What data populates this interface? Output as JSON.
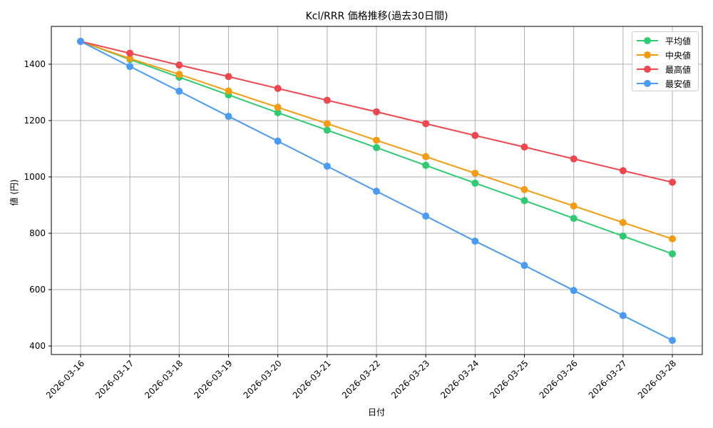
{
  "chart_data": {
    "type": "line",
    "title": "Kcl/RRR 価格推移(過去30日間)",
    "xlabel": "日付",
    "ylabel": "値 (円)",
    "x": [
      "2026-03-16",
      "2026-03-17",
      "2026-03-18",
      "2026-03-19",
      "2026-03-20",
      "2026-03-21",
      "2026-03-22",
      "2026-03-23",
      "2026-03-24",
      "2026-03-25",
      "2026-03-26",
      "2026-03-27",
      "2026-03-28"
    ],
    "yticks": [
      400,
      600,
      800,
      1000,
      1200,
      1400
    ],
    "ylim": [
      365,
      1535
    ],
    "grid": true,
    "legend_position": "upper right",
    "series": [
      {
        "name": "平均値",
        "color": "#2ecc71",
        "values": [
          1481,
          1417,
          1354,
          1291,
          1228,
          1166,
          1104,
          1041,
          978,
          916,
          853,
          790,
          727
        ]
      },
      {
        "name": "中央値",
        "color": "#f39c12",
        "values": [
          1481,
          1420,
          1364,
          1305,
          1247,
          1189,
          1130,
          1072,
          1013,
          955,
          897,
          838,
          780
        ]
      },
      {
        "name": "最高値",
        "color": "#f0474f",
        "values": [
          1481,
          1439,
          1397,
          1356,
          1314,
          1272,
          1231,
          1189,
          1147,
          1106,
          1064,
          1022,
          981
        ]
      },
      {
        "name": "最安値",
        "color": "#4a9bf5",
        "values": [
          1481,
          1392,
          1304,
          1215,
          1127,
          1038,
          949,
          861,
          772,
          686,
          597,
          508,
          420
        ]
      }
    ]
  },
  "legend": {
    "items": [
      {
        "label": "平均値",
        "color": "#2ecc71"
      },
      {
        "label": "中央値",
        "color": "#f39c12"
      },
      {
        "label": "最高値",
        "color": "#f0474f"
      },
      {
        "label": "最安値",
        "color": "#4a9bf5"
      }
    ]
  }
}
